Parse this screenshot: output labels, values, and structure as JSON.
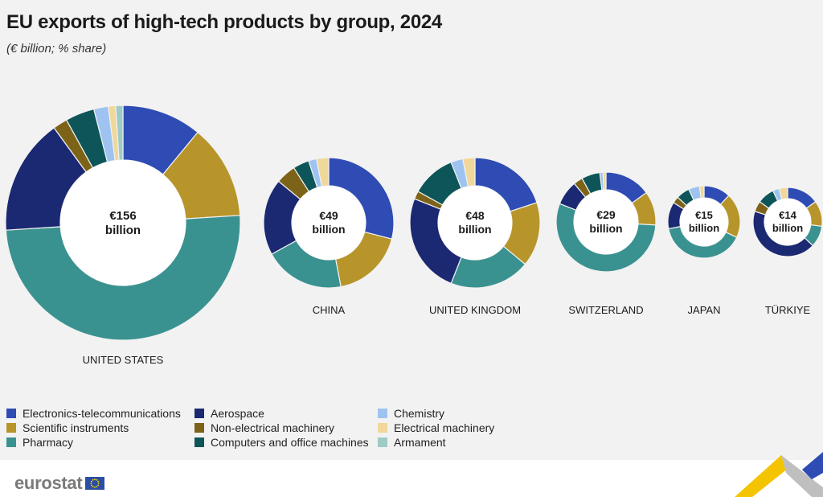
{
  "header": {
    "title": "EU exports of high-tech products by group, 2024",
    "subtitle": "(€ billion; % share)"
  },
  "colors": {
    "electronics": "#2e4cb3",
    "scientific": "#b7952a",
    "pharmacy": "#3a9290",
    "aerospace": "#1b2872",
    "nonelectrical": "#7c6318",
    "computers": "#0d5558",
    "chemistry": "#9fc3f0",
    "electrical": "#f0d79a",
    "armament": "#9fcbc6"
  },
  "legend": [
    {
      "key": "electronics",
      "label": "Electronics-telecommunications"
    },
    {
      "key": "scientific",
      "label": "Scientific instruments"
    },
    {
      "key": "pharmacy",
      "label": "Pharmacy"
    },
    {
      "key": "aerospace",
      "label": "Aerospace"
    },
    {
      "key": "nonelectrical",
      "label": "Non-electrical machinery"
    },
    {
      "key": "computers",
      "label": "Computers and office machines"
    },
    {
      "key": "chemistry",
      "label": "Chemistry"
    },
    {
      "key": "electrical",
      "label": "Electrical machinery"
    },
    {
      "key": "armament",
      "label": "Armament"
    }
  ],
  "chart_data": {
    "type": "donut",
    "title": "EU exports of high-tech products by group, 2024",
    "subtitle": "(€ billion; % share)",
    "series_order": [
      "electronics",
      "scientific",
      "pharmacy",
      "aerospace",
      "nonelectrical",
      "computers",
      "chemistry",
      "electrical",
      "armament"
    ],
    "countries": [
      {
        "name": "UNITED STATES",
        "total": 156,
        "center_value": "€156",
        "center_unit": "billion",
        "shares": {
          "electronics": 11,
          "scientific": 13,
          "pharmacy": 50,
          "aerospace": 16,
          "nonelectrical": 2,
          "computers": 4,
          "chemistry": 2,
          "electrical": 1,
          "armament": 1
        }
      },
      {
        "name": "CHINA",
        "total": 49,
        "center_value": "€49",
        "center_unit": "billion",
        "shares": {
          "electronics": 29,
          "scientific": 18,
          "pharmacy": 20,
          "aerospace": 19,
          "nonelectrical": 5,
          "computers": 4,
          "chemistry": 2,
          "electrical": 3,
          "armament": 0
        }
      },
      {
        "name": "UNITED KINGDOM",
        "total": 48,
        "center_value": "€48",
        "center_unit": "billion",
        "shares": {
          "electronics": 20,
          "scientific": 16,
          "pharmacy": 20,
          "aerospace": 25,
          "nonelectrical": 2,
          "computers": 11,
          "chemistry": 3,
          "electrical": 3,
          "armament": 0
        }
      },
      {
        "name": "SWITZERLAND",
        "total": 29,
        "center_value": "€29",
        "center_unit": "billion",
        "shares": {
          "electronics": 15,
          "scientific": 11,
          "pharmacy": 55,
          "aerospace": 8,
          "nonelectrical": 3,
          "computers": 6,
          "chemistry": 1,
          "electrical": 1,
          "armament": 0
        }
      },
      {
        "name": "JAPAN",
        "total": 15,
        "center_value": "€15",
        "center_unit": "billion",
        "shares": {
          "electronics": 12,
          "scientific": 20,
          "pharmacy": 40,
          "aerospace": 12,
          "nonelectrical": 3,
          "computers": 6,
          "chemistry": 5,
          "electrical": 2,
          "armament": 0
        }
      },
      {
        "name": "TÜRKIYE",
        "total": 14,
        "center_value": "€14",
        "center_unit": "billion",
        "shares": {
          "electronics": 15,
          "scientific": 12,
          "pharmacy": 10,
          "aerospace": 43,
          "nonelectrical": 5,
          "computers": 8,
          "chemistry": 3,
          "electrical": 4,
          "armament": 0
        }
      }
    ]
  },
  "footer": {
    "logo_text": "eurostat"
  }
}
